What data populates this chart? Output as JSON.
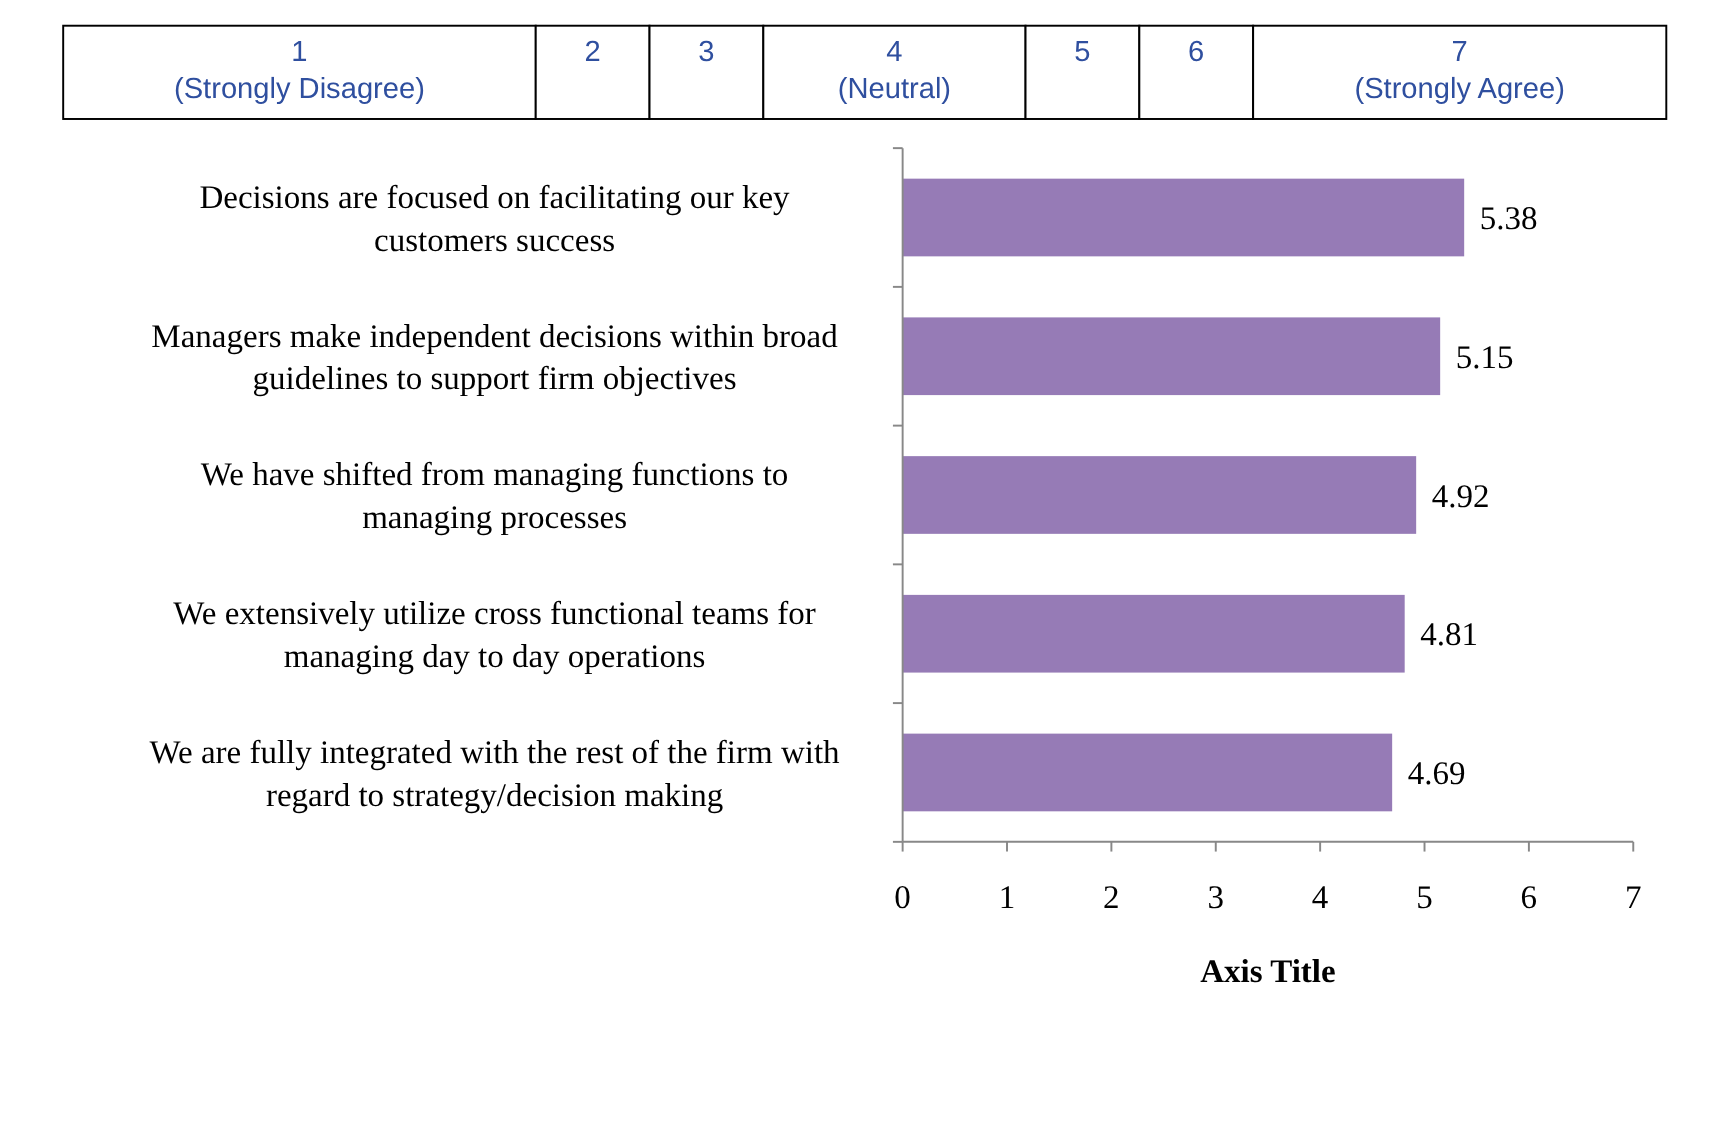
{
  "chart_data": {
    "type": "bar",
    "orientation": "horizontal",
    "xlabel": "Axis Title",
    "categories": [
      "Decisions are focused on facilitating our key customers success",
      "Managers make independent decisions within broad guidelines to support firm objectives",
      "We have shifted from managing functions to managing processes",
      "We extensively utilize cross functional teams for managing day to day operations",
      "We are fully integrated with the rest of the firm with regard to strategy/decision making"
    ],
    "values": [
      5.38,
      5.15,
      4.92,
      4.81,
      4.69
    ],
    "color": "#967bb6",
    "data_labels": true,
    "xlim": [
      0,
      7
    ],
    "xticks": [
      0,
      1,
      2,
      3,
      4,
      5,
      6,
      7
    ],
    "grid": false,
    "annotations": [
      "1\n(Strongly Disagree)",
      "2",
      "3",
      "4\n(Neutral)",
      "5",
      "6",
      "7\n(Strongly Agree)"
    ]
  }
}
